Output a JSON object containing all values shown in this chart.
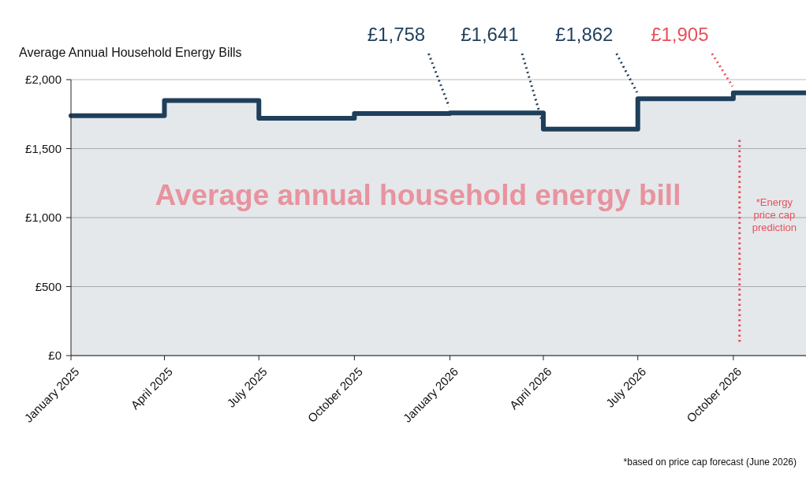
{
  "chart_data": {
    "type": "step",
    "title": "Average Annual Household Energy Bills",
    "x": [
      "2025-01",
      "2025-04",
      "2025-07",
      "2025-10",
      "2026-01",
      "2026-04",
      "2026-07",
      "2026-10",
      "2026-12-10"
    ],
    "series": [
      {
        "color": "#1f3f5b",
        "values": [
          1738,
          1849,
          1720,
          1755,
          1758,
          1641,
          1862,
          1905,
          1905
        ]
      }
    ],
    "xlim": [
      "2025-01",
      "2026-12-10"
    ],
    "xticks": [
      {
        "value": "2025-01",
        "label": "January 2025"
      },
      {
        "value": "2025-04",
        "label": "April 2025"
      },
      {
        "value": "2025-07",
        "label": "July 2025"
      },
      {
        "value": "2025-10",
        "label": "October 2025"
      },
      {
        "value": "2026-01",
        "label": "January 2026"
      },
      {
        "value": "2026-04",
        "label": "April 2026"
      },
      {
        "value": "2026-07",
        "label": "July 2026"
      },
      {
        "value": "2026-10",
        "label": "October 2026"
      }
    ],
    "ylim": [
      0,
      2000
    ],
    "yticks": [
      {
        "value": 0,
        "label": "£0"
      },
      {
        "value": 500,
        "label": "£500"
      },
      {
        "value": 1000,
        "label": "£1,000"
      },
      {
        "value": 1500,
        "label": "£1,500"
      },
      {
        "value": 2000,
        "label": "£2,000"
      }
    ],
    "grid": "y",
    "ref_lines": [
      {
        "axis": "x",
        "value": "2026-10-07",
        "label": "*Energy price cap prediction",
        "color": "#e8505b",
        "line_style": "dotted"
      }
    ],
    "annotations": [
      {
        "text": "£1,758",
        "x": "2026-01",
        "y": 1758
      },
      {
        "text": "£1,641",
        "x": "2026-04",
        "y": 1641
      },
      {
        "text": "£1,862",
        "x": "2026-07",
        "y": 1862
      },
      {
        "text": "£1,905",
        "x": "2026-10",
        "y": 1905
      },
      "Average annual household energy bill",
      "*based on price cap forecast (June 2026)"
    ]
  }
}
